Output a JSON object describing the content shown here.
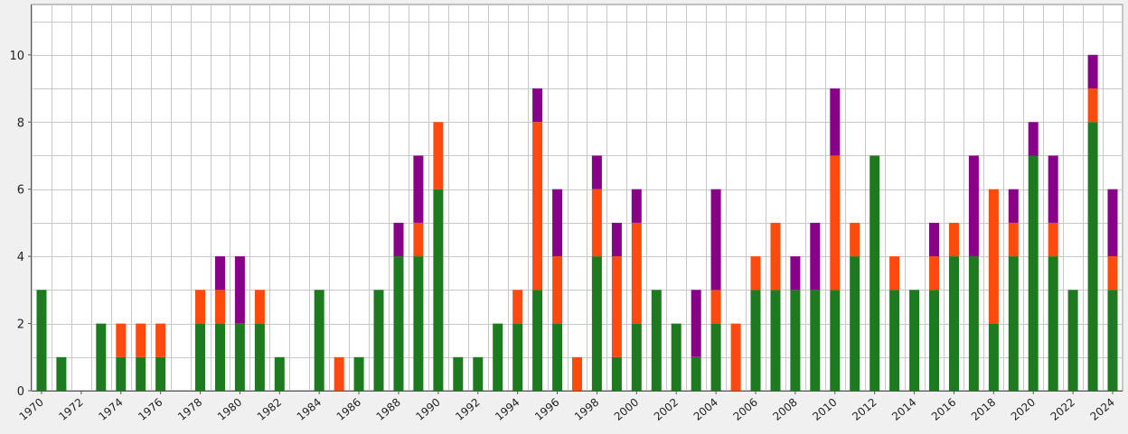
{
  "chart_data": {
    "type": "bar",
    "stacked": true,
    "title": "",
    "xlabel": "",
    "ylabel": "",
    "ylim": [
      0,
      11.5
    ],
    "yticks": [
      "0",
      "2",
      "4",
      "6",
      "8",
      "10"
    ],
    "xtick_labels": [
      "1970",
      "1972",
      "1974",
      "1976",
      "1978",
      "1980",
      "1982",
      "1984",
      "1986",
      "1988",
      "1990",
      "1992",
      "1994",
      "1996",
      "1998",
      "2000",
      "2002",
      "2004",
      "2006",
      "2008",
      "2010",
      "2012",
      "2014",
      "2016",
      "2018",
      "2020",
      "2022",
      "2024"
    ],
    "grid": "on",
    "legend": "none",
    "categories": [
      "1970",
      "1971",
      "1972",
      "1973",
      "1974",
      "1975",
      "1976",
      "1977",
      "1978",
      "1979",
      "1980",
      "1981",
      "1982",
      "1983",
      "1984",
      "1985",
      "1986",
      "1987",
      "1988",
      "1989",
      "1990",
      "1991",
      "1992",
      "1993",
      "1994",
      "1995",
      "1996",
      "1997",
      "1998",
      "1999",
      "2000",
      "2001",
      "2002",
      "2003",
      "2004",
      "2005",
      "2006",
      "2007",
      "2008",
      "2009",
      "2010",
      "2011",
      "2012",
      "2013",
      "2014",
      "2015",
      "2016",
      "2017",
      "2018",
      "2019",
      "2020",
      "2021",
      "2022",
      "2023",
      "2024"
    ],
    "series": [
      {
        "color": "#1e7a1e",
        "values": [
          3,
          1,
          0,
          2,
          1,
          1,
          1,
          0,
          2,
          2,
          2,
          2,
          1,
          0,
          3,
          0,
          1,
          3,
          4,
          4,
          6,
          1,
          1,
          2,
          2,
          3,
          2,
          0,
          4,
          1,
          2,
          3,
          2,
          1,
          2,
          0,
          3,
          3,
          3,
          3,
          3,
          4,
          7,
          3,
          3,
          3,
          4,
          4,
          2,
          4,
          7,
          4,
          3,
          8,
          3
        ]
      },
      {
        "color": "#ff4a0f",
        "values": [
          0,
          0,
          0,
          0,
          1,
          1,
          1,
          0,
          1,
          1,
          0,
          1,
          0,
          0,
          0,
          1,
          0,
          0,
          0,
          1,
          2,
          0,
          0,
          0,
          1,
          5,
          2,
          1,
          2,
          3,
          3,
          0,
          0,
          0,
          1,
          2,
          1,
          2,
          0,
          0,
          4,
          1,
          0,
          1,
          0,
          1,
          1,
          0,
          4,
          1,
          0,
          1,
          0,
          1,
          1
        ]
      },
      {
        "color": "#880088",
        "values": [
          0,
          0,
          0,
          0,
          0,
          0,
          0,
          0,
          0,
          1,
          2,
          0,
          0,
          0,
          0,
          0,
          0,
          0,
          1,
          2,
          0,
          0,
          0,
          0,
          0,
          1,
          2,
          0,
          1,
          1,
          1,
          0,
          0,
          2,
          3,
          0,
          0,
          0,
          1,
          2,
          2,
          0,
          0,
          0,
          0,
          1,
          0,
          3,
          0,
          1,
          1,
          2,
          0,
          1,
          2
        ]
      }
    ]
  }
}
